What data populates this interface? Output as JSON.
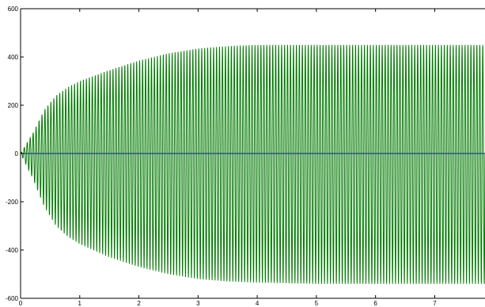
{
  "chart_data": {
    "type": "line",
    "title": "",
    "xlabel": "",
    "ylabel": "",
    "xlim": [
      0,
      7.85
    ],
    "ylim": [
      -600,
      600
    ],
    "xticks": [
      "0",
      "1",
      "2",
      "3",
      "4",
      "5",
      "6",
      "7"
    ],
    "yticks": [
      "600",
      "400",
      "200",
      "0",
      "-200",
      "-400",
      "-600"
    ],
    "grid": false,
    "legend": "none",
    "series": [
      {
        "color": "#007a00",
        "style": "oscillation",
        "frequency_hz": 20,
        "upper_envelope": {
          "x": [
            0,
            0.2,
            0.4,
            0.6,
            0.8,
            1.0,
            1.5,
            2.0,
            2.5,
            3.0,
            3.5,
            4.0,
            5.0,
            6.0,
            7.0,
            7.85
          ],
          "y": [
            0,
            80,
            180,
            240,
            275,
            300,
            345,
            385,
            415,
            435,
            445,
            450,
            450,
            450,
            450,
            450
          ]
        },
        "lower_envelope": {
          "x": [
            0,
            0.2,
            0.4,
            0.6,
            0.8,
            1.0,
            1.5,
            2.0,
            2.5,
            3.0,
            3.5,
            4.0,
            5.0,
            6.0,
            7.0,
            7.85
          ],
          "y": [
            0,
            -100,
            -220,
            -300,
            -345,
            -375,
            -430,
            -470,
            -500,
            -520,
            -530,
            -535,
            -540,
            -540,
            -540,
            -540
          ]
        }
      },
      {
        "color": "#1f3f9f",
        "style": "line",
        "x": [
          0,
          7.85
        ],
        "y": [
          0,
          0
        ]
      }
    ]
  }
}
